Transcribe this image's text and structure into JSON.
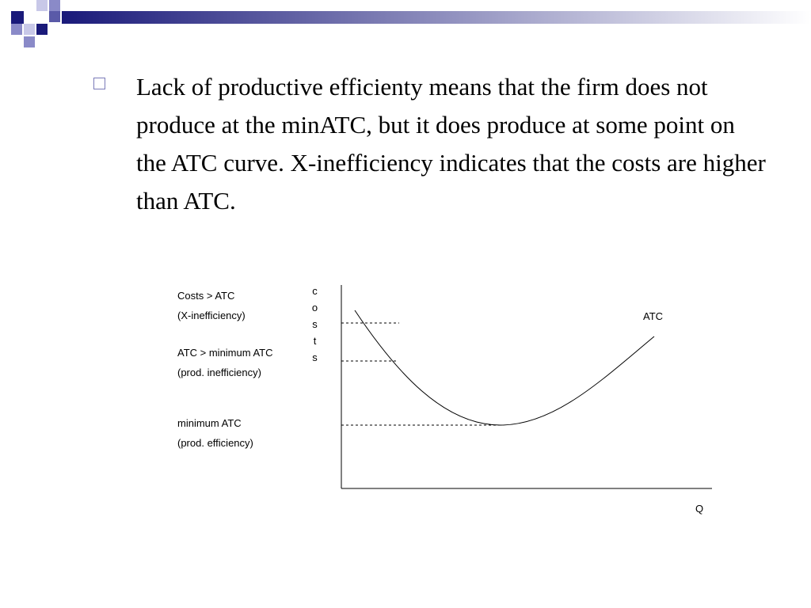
{
  "bullet": "Lack of productive efficienty means that the firm does not produce at the minATC, but it does produce at some point on the ATC curve. X-inefficiency indicates that the costs are higher than ATC.",
  "diagram": {
    "labels": [
      "Costs > ATC",
      "(X-inefficiency)",
      "ATC > minimum ATC",
      "(prod. inefficiency)",
      "minimum ATC",
      "(prod. efficiency)"
    ],
    "y_axis": "costs",
    "x_axis": "Q",
    "curve": "ATC"
  }
}
